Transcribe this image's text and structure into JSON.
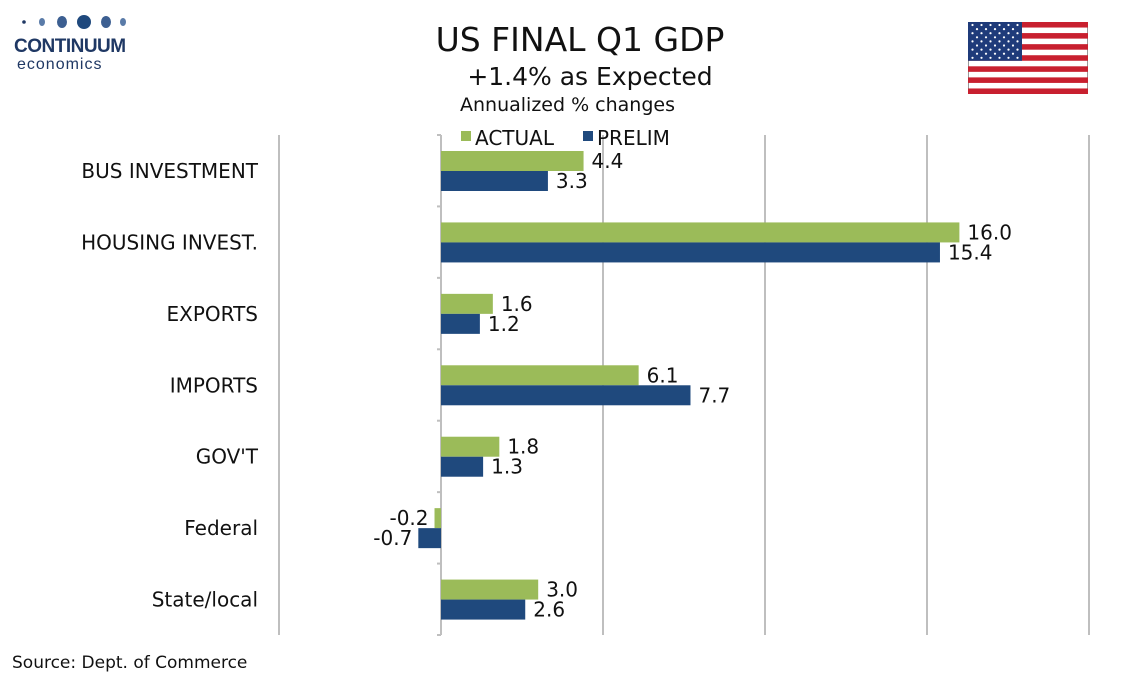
{
  "brand": {
    "name": "CONTINUUM",
    "sub": "economics"
  },
  "title": "US FINAL Q1 GDP",
  "subtitle": "+1.4% as Expected",
  "units_label": "Annualized % changes",
  "source": "Source: Dept. of Commerce",
  "flag_icon": "us-flag-icon",
  "colors": {
    "actual": "#9bbb59",
    "prelim": "#1f497d",
    "grid": "#bfbfbf",
    "brand": "#1f3864"
  },
  "chart_data": {
    "type": "bar",
    "orientation": "horizontal",
    "categories": [
      "BUS INVESTMENT",
      "HOUSING INVEST.",
      "EXPORTS",
      "IMPORTS",
      "GOV'T",
      "Federal",
      "State/local"
    ],
    "series": [
      {
        "name": "ACTUAL",
        "values": [
          4.4,
          16.0,
          1.6,
          6.1,
          1.8,
          -0.2,
          3.0
        ],
        "labels": [
          "4.4",
          "16.0",
          "1.6",
          "6.1",
          "1.8",
          "-0.2",
          "3.0"
        ]
      },
      {
        "name": "PRELIM",
        "values": [
          3.3,
          15.4,
          1.2,
          7.7,
          1.3,
          -0.7,
          2.6
        ],
        "labels": [
          "3.3",
          "15.4",
          "1.2",
          "7.7",
          "1.3",
          "-0.7",
          "2.6"
        ]
      }
    ],
    "xlim": [
      -5,
      20
    ],
    "grid": true,
    "legend_position": "top"
  }
}
